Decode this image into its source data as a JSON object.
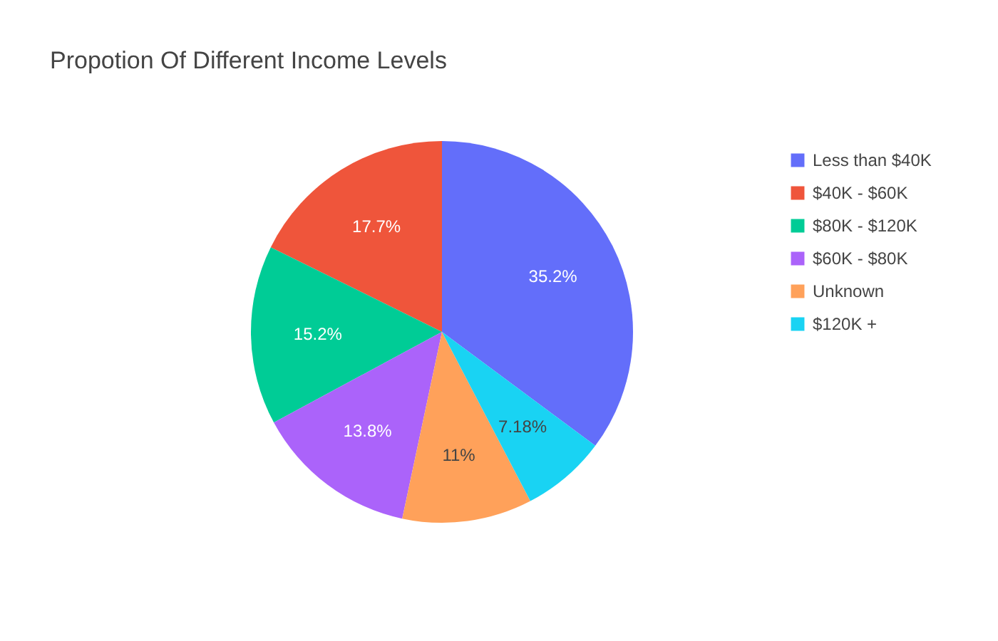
{
  "chart_data": {
    "type": "pie",
    "title": "Propotion Of Different Income Levels",
    "categories": [
      "Less than $40K",
      "$40K - $60K",
      "$80K - $120K",
      "$60K - $80K",
      "Unknown",
      "$120K +"
    ],
    "values": [
      35.2,
      17.7,
      15.2,
      13.8,
      11,
      7.18
    ],
    "value_labels": [
      "35.2%",
      "17.7%",
      "15.2%",
      "13.8%",
      "11%",
      "7.18%"
    ],
    "colors": [
      "#636efa",
      "#ef553b",
      "#00cc96",
      "#ab63fa",
      "#ffa15a",
      "#19d3f3"
    ],
    "legend": "top right"
  }
}
